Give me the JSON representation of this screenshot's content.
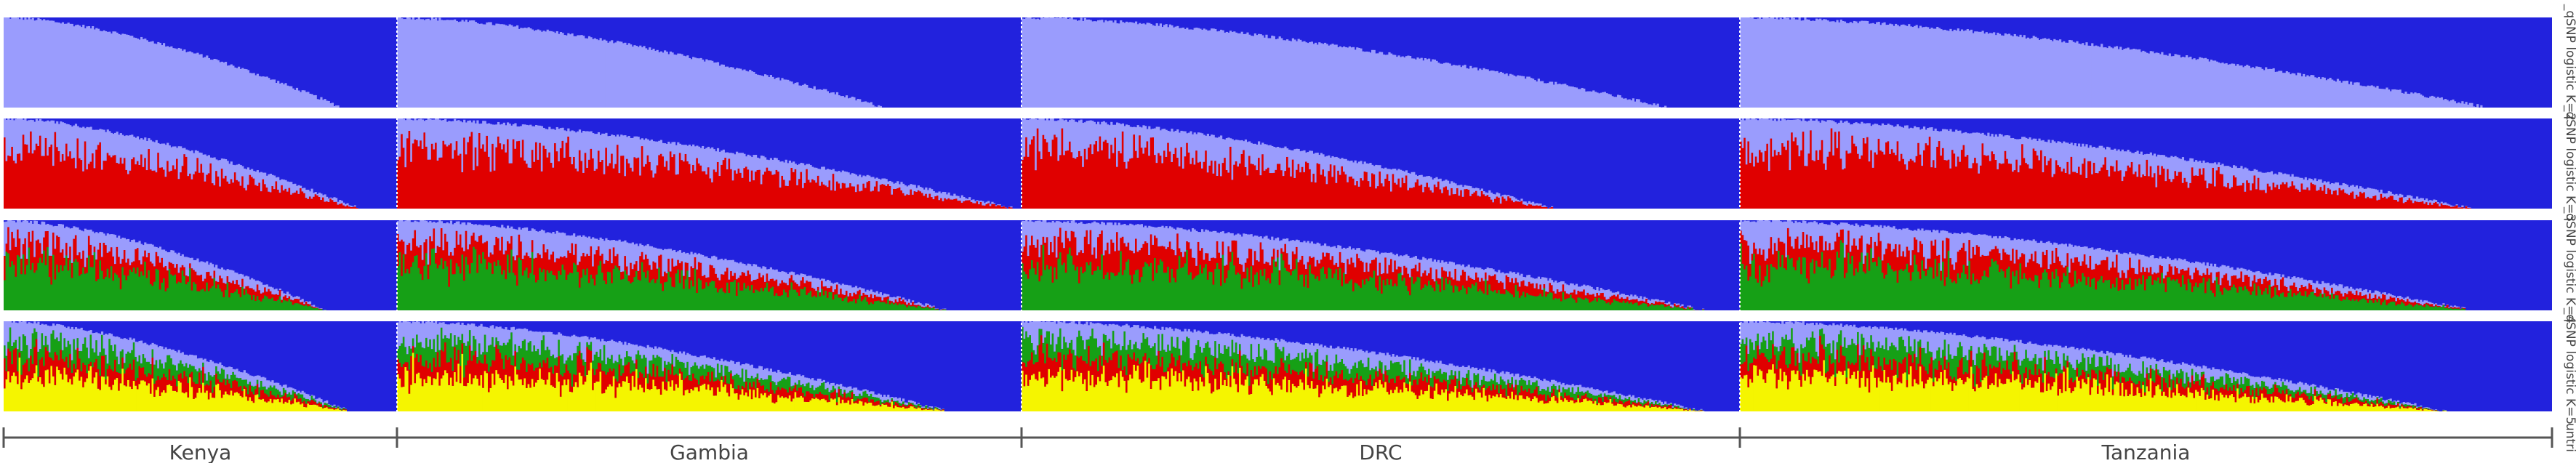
{
  "chart_data": {
    "type": "bar",
    "subtype": "stacked-admixture",
    "populations": [
      {
        "name": "Kenya",
        "n_samples": 210
      },
      {
        "name": "Gambia",
        "n_samples": 330
      },
      {
        "name": "DRC",
        "n_samples": 380
      },
      {
        "name": "Tanzania",
        "n_samples": 430
      }
    ],
    "rows": [
      {
        "label": "_qSNP logistic K=2",
        "K": 2,
        "components": [
          "periwinkle",
          "blue"
        ],
        "colors": [
          "#9a9cfd",
          "#2222dd"
        ],
        "descending_component": "periwinkle",
        "fraction_nonzero_by_population": [
          0.86,
          0.78,
          0.9,
          0.92
        ]
      },
      {
        "label": "_qSNP logistic K=3",
        "K": 3,
        "components": [
          "red",
          "periwinkle",
          "blue"
        ],
        "colors": [
          "#e00000",
          "#9a9cfd",
          "#2222dd"
        ],
        "descending_component": "red",
        "fraction_nonzero_by_population": [
          0.9,
          0.99,
          0.74,
          0.9
        ]
      },
      {
        "label": "_qSNP logistic K=4",
        "K": 4,
        "components": [
          "green",
          "red",
          "periwinkle",
          "blue"
        ],
        "colors": [
          "#16a016",
          "#e00000",
          "#9a9cfd",
          "#2222dd"
        ],
        "descending_component": "green",
        "fraction_nonzero_by_population": [
          0.82,
          0.88,
          0.95,
          0.9
        ]
      },
      {
        "label": "_qSNP logistic K=5",
        "K": 5,
        "components": [
          "yellow",
          "red",
          "green",
          "periwinkle",
          "blue"
        ],
        "colors": [
          "#f5f500",
          "#e00000",
          "#16a016",
          "#9a9cfd",
          "#2222dd"
        ],
        "descending_component": "yellow",
        "fraction_nonzero_by_population": [
          0.88,
          0.88,
          0.95,
          0.87
        ]
      }
    ],
    "x_axis_label": "untri",
    "legend": "none",
    "grid": false
  }
}
